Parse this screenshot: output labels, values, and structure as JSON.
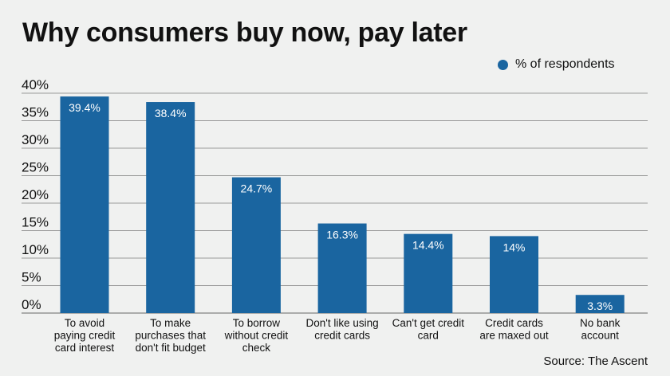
{
  "chart_data": {
    "type": "bar",
    "title": "Why consumers buy now, pay later",
    "categories": [
      "To avoid paying credit card interest",
      "To make purchases that don't fit budget",
      "To borrow without credit check",
      "Don't like using credit cards",
      "Can't get credit card",
      "Credit cards are maxed out",
      "No bank account"
    ],
    "category_lines": [
      [
        "To avoid",
        "paying credit",
        "card interest"
      ],
      [
        "To make",
        "purchases that",
        "don't fit budget"
      ],
      [
        "To borrow",
        "without credit",
        "check"
      ],
      [
        "Don't like using",
        "credit cards"
      ],
      [
        "Can't get credit",
        "card"
      ],
      [
        "Credit cards",
        "are maxed out"
      ],
      [
        "No bank",
        "account"
      ]
    ],
    "series": [
      {
        "name": "% of respondents",
        "values": [
          39.4,
          38.4,
          24.7,
          16.3,
          14.4,
          14,
          3.3
        ]
      }
    ],
    "data_labels": [
      "39.4%",
      "38.4%",
      "24.7%",
      "16.3%",
      "14.4%",
      "14%",
      "3.3%"
    ],
    "yticks": [
      "0%",
      "5%",
      "10%",
      "15%",
      "20%",
      "25%",
      "30%",
      "35%",
      "40%"
    ],
    "ylim": [
      0,
      40
    ],
    "xlabel": "",
    "ylabel": "",
    "grid": true,
    "legend_position": "top-right",
    "bar_color": "#1a65a0",
    "source": "Source: The Ascent"
  }
}
